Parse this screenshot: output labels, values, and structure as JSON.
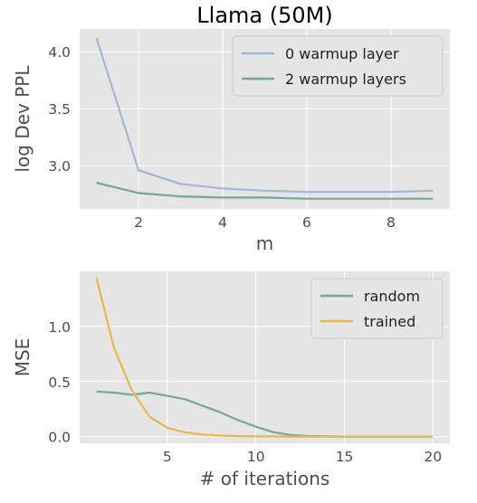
{
  "chart_data": [
    {
      "type": "line",
      "title": "Llama (50M)",
      "xlabel": "m",
      "ylabel": "log Dev PPL",
      "x": [
        1,
        2,
        3,
        4,
        5,
        6,
        7,
        8,
        9
      ],
      "xlim": [
        0.6,
        9.4
      ],
      "ylim": [
        2.62,
        4.2
      ],
      "xticks": [
        2,
        4,
        6,
        8
      ],
      "yticks": [
        3.0,
        3.5,
        4.0
      ],
      "ytick_labels": [
        "3.0",
        "3.5",
        "4.0"
      ],
      "grid": true,
      "legend_position": "top-right",
      "series": [
        {
          "name": "0 warmup layer",
          "color": "#9db8d8",
          "values": [
            4.12,
            2.96,
            2.84,
            2.8,
            2.78,
            2.77,
            2.77,
            2.77,
            2.78
          ]
        },
        {
          "name": "2 warmup layers",
          "color": "#77a893",
          "values": [
            2.85,
            2.76,
            2.73,
            2.72,
            2.72,
            2.71,
            2.71,
            2.71,
            2.71
          ]
        }
      ]
    },
    {
      "type": "line",
      "title": "",
      "xlabel": "# of iterations",
      "ylabel": "MSE",
      "x": [
        1,
        2,
        3,
        4,
        5,
        6,
        7,
        8,
        9,
        10,
        11,
        12,
        13,
        14,
        15,
        16,
        17,
        18,
        19,
        20
      ],
      "xlim": [
        0.05,
        20.95
      ],
      "ylim": [
        -0.06,
        1.5
      ],
      "xticks": [
        5,
        10,
        15,
        20
      ],
      "yticks": [
        0.0,
        0.5,
        1.0
      ],
      "ytick_labels": [
        "0.0",
        "0.5",
        "1.0"
      ],
      "grid": true,
      "legend_position": "top-right",
      "series": [
        {
          "name": "random",
          "color": "#77a893",
          "values": [
            0.41,
            0.4,
            0.38,
            0.4,
            0.37,
            0.34,
            0.28,
            0.22,
            0.15,
            0.09,
            0.04,
            0.015,
            0.005,
            0.002,
            0.001,
            0.0,
            0.0,
            0.0,
            0.0,
            0.0
          ]
        },
        {
          "name": "trained",
          "color": "#e6b64f",
          "values": [
            1.44,
            0.8,
            0.42,
            0.18,
            0.08,
            0.04,
            0.02,
            0.01,
            0.005,
            0.003,
            0.002,
            0.001,
            0.0,
            0.0,
            0.0,
            0.0,
            0.0,
            0.0,
            0.0,
            0.0
          ]
        }
      ]
    }
  ]
}
